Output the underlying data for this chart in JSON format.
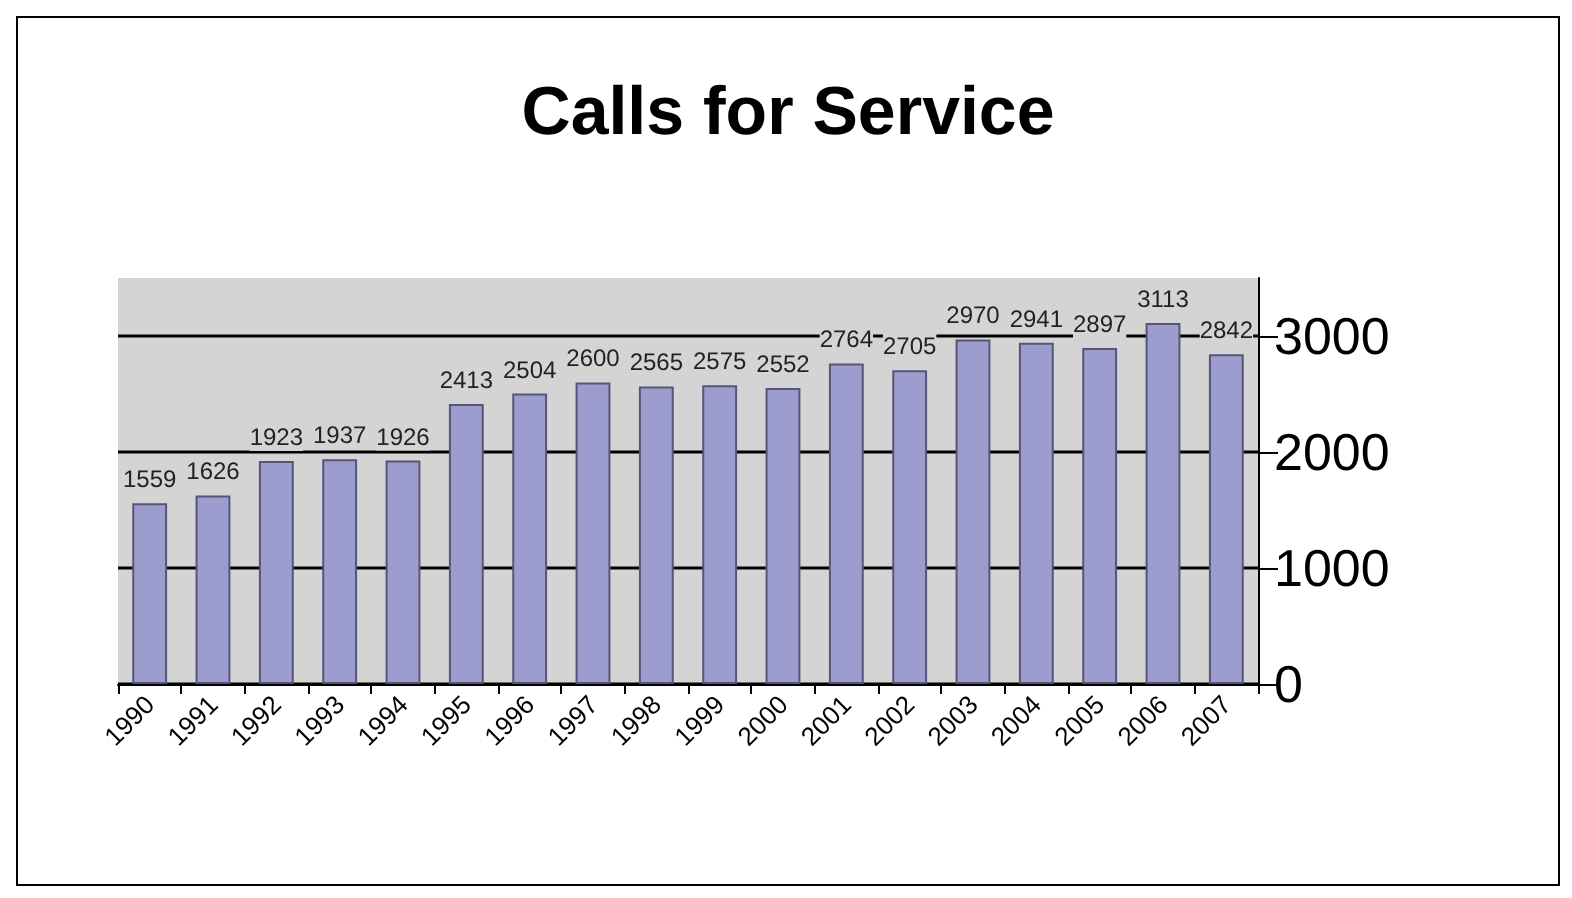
{
  "chart_data": {
    "type": "bar",
    "title": "Calls for Service",
    "categories": [
      "1990",
      "1991",
      "1992",
      "1993",
      "1994",
      "1995",
      "1996",
      "1997",
      "1998",
      "1999",
      "2000",
      "2001",
      "2002",
      "2003",
      "2004",
      "2005",
      "2006",
      "2007"
    ],
    "values": [
      1559,
      1626,
      1923,
      1937,
      1926,
      2413,
      2504,
      2600,
      2565,
      2575,
      2552,
      2764,
      2705,
      2970,
      2941,
      2897,
      3113,
      2842
    ],
    "color": "#9c9ccf",
    "ylim": [
      0,
      3500
    ],
    "yticks": [
      0,
      1000,
      2000,
      3000
    ],
    "grid": "y",
    "data_labels": true
  }
}
